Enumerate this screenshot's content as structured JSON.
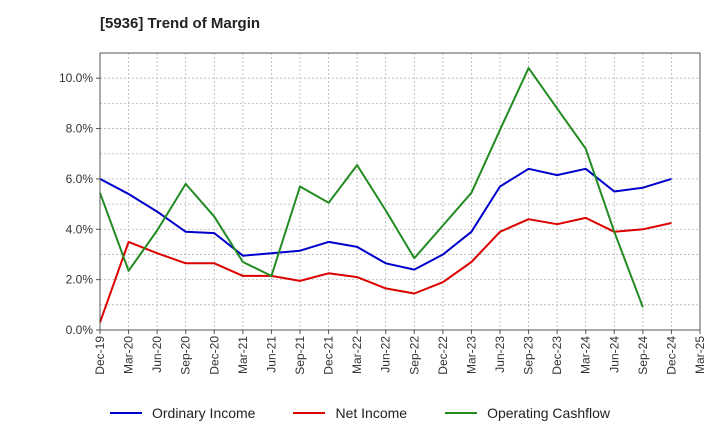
{
  "chart_data": {
    "type": "line",
    "title": "[5936]  Trend of Margin",
    "xlabel": "",
    "ylabel": "",
    "categories": [
      "Dec-19",
      "Mar-20",
      "Jun-20",
      "Sep-20",
      "Dec-20",
      "Mar-21",
      "Jun-21",
      "Sep-21",
      "Dec-21",
      "Mar-22",
      "Jun-22",
      "Sep-22",
      "Dec-22",
      "Mar-23",
      "Jun-23",
      "Sep-23",
      "Dec-23",
      "Mar-24",
      "Jun-24",
      "Sep-24",
      "Dec-24",
      "Mar-25"
    ],
    "ylim": [
      0,
      11
    ],
    "yticks": [
      "0.0%",
      "2.0%",
      "4.0%",
      "6.0%",
      "8.0%",
      "10.0%"
    ],
    "ytick_values": [
      0,
      2,
      4,
      6,
      8,
      10
    ],
    "grid": true,
    "legend_position": "bottom",
    "series": [
      {
        "name": "Ordinary Income",
        "color": "#0000cc",
        "values": [
          6.0,
          5.4,
          4.7,
          3.9,
          3.85,
          2.95,
          3.05,
          3.15,
          3.5,
          3.3,
          2.65,
          2.4,
          3.0,
          3.9,
          5.7,
          6.4,
          6.15,
          6.4,
          5.5,
          5.65,
          6.0,
          null
        ]
      },
      {
        "name": "Net Income",
        "color": "#dd0000",
        "values": [
          0.3,
          3.5,
          3.05,
          2.65,
          2.65,
          2.15,
          2.15,
          1.95,
          2.25,
          2.1,
          1.65,
          1.45,
          1.9,
          2.7,
          3.9,
          4.4,
          4.2,
          4.45,
          3.9,
          4.0,
          4.25,
          null
        ]
      },
      {
        "name": "Operating Cashflow",
        "color": "#228b22",
        "values": [
          5.45,
          2.35,
          3.95,
          5.8,
          4.5,
          2.7,
          2.15,
          5.7,
          5.05,
          6.55,
          4.75,
          2.85,
          4.15,
          5.45,
          7.95,
          10.4,
          8.8,
          7.2,
          3.9,
          0.9,
          null,
          null
        ]
      }
    ]
  }
}
